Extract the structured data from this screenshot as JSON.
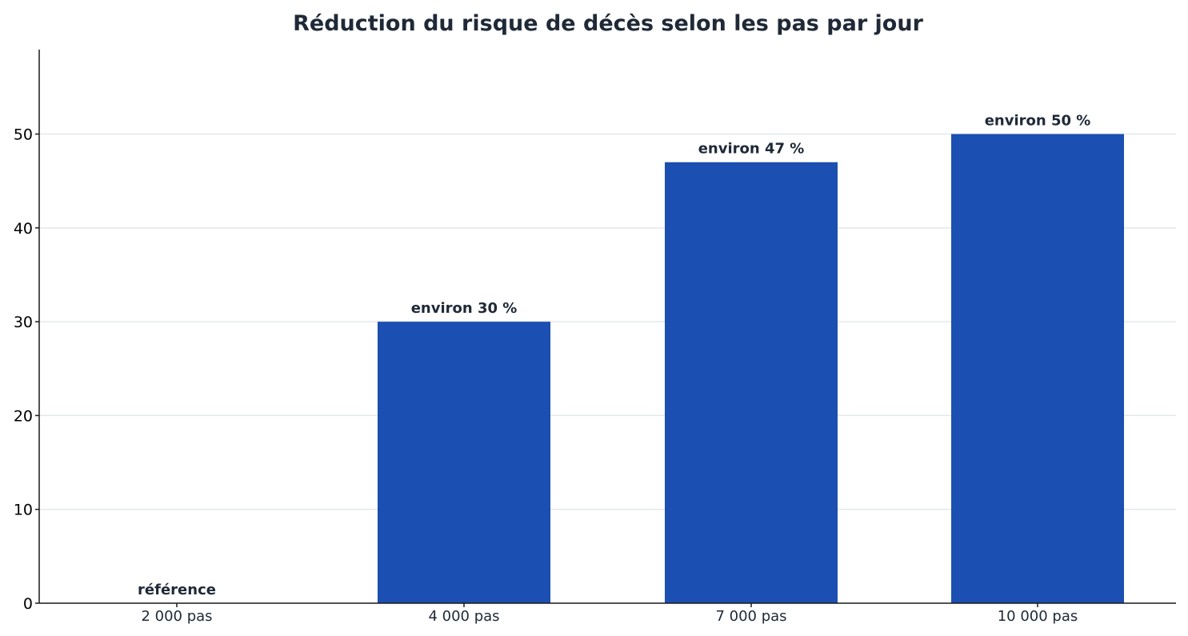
{
  "chart_data": {
    "type": "bar",
    "title": "Réduction du risque de décès selon les pas par jour",
    "xlabel": "",
    "ylabel": "",
    "categories": [
      "2 000 pas",
      "4 000 pas",
      "7 000 pas",
      "10 000 pas"
    ],
    "values": [
      0,
      30,
      47,
      50
    ],
    "data_labels": [
      "référence",
      "environ 30 %",
      "environ 47 %",
      "environ 50 %"
    ],
    "yticks": [
      "0",
      "10",
      "20",
      "30",
      "40",
      "50"
    ],
    "ylim": [
      0,
      59
    ],
    "grid": true,
    "legend": "none",
    "colors": {
      "bar": "#1b4fb1",
      "text": "#1f2937",
      "grid": "#e3e8ec",
      "axis": "#1a1a1a"
    }
  }
}
